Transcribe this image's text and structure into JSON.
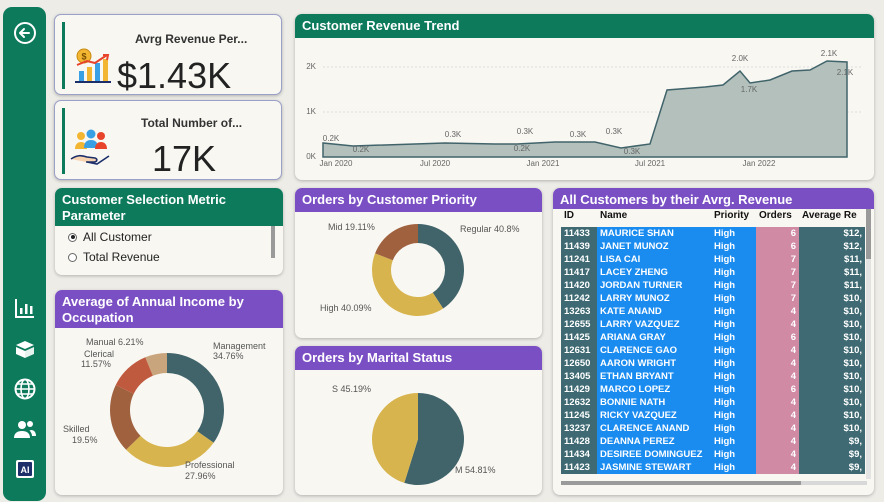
{
  "colors": {
    "sidebar": "#0d7a5c",
    "header_green": "#0d7a5c",
    "header_purple": "#7b4fc4",
    "donut_teal": "#41646b",
    "donut_gold": "#d7b44d",
    "donut_brown": "#a0613e",
    "donut_red": "#c05a3f",
    "donut_tan": "#c9a57e",
    "table_blue": "#1a8cf0",
    "table_dark": "#3f6a73",
    "table_pink": "#d08aa4"
  },
  "sidebar": {
    "icons": [
      "back-arrow-icon",
      "bar-chart-icon",
      "boxes-icon",
      "globe-icon",
      "users-icon",
      "ai-icon"
    ]
  },
  "kpi_revenue": {
    "title": "Avrg Revenue Per...",
    "value": "$1.43K"
  },
  "kpi_customers": {
    "title": "Total Number of...",
    "value": "17K"
  },
  "parameter": {
    "title": "Customer Selection Metric Parameter",
    "options": [
      {
        "label": "All Customer",
        "selected": true
      },
      {
        "label": "Total Revenue",
        "selected": false
      }
    ]
  },
  "trend": {
    "title": "Customer Revenue Trend",
    "y_ticks": [
      "2K",
      "1K",
      "0K"
    ],
    "x_ticks": [
      "Jan 2020",
      "Jul 2020",
      "Jan 2021",
      "Jul 2021",
      "Jan 2022"
    ],
    "labels": [
      "0.2K",
      "0.2K",
      "0.3K",
      "0.3K",
      "0.2K",
      "0.3K",
      "0.3K",
      "0.3K",
      "2.0K",
      "1.7K",
      "2.1K",
      "2.1K"
    ]
  },
  "priority": {
    "title": "Orders by Customer Priority",
    "labels": [
      "Mid 19.11%",
      "Regular 40.8%",
      "High 40.09%"
    ]
  },
  "occupation": {
    "title": "Average of Annual Income by Occupation",
    "labels": {
      "manual": "Manual 6.21%",
      "clerical_1": "Clerical",
      "clerical_2": "11.57%",
      "management_1": "Management",
      "management_2": "34.76%",
      "skilled_1": "Skilled",
      "skilled_2": "19.5%",
      "professional_1": "Professional",
      "professional_2": "27.96%"
    }
  },
  "marital": {
    "title": "Orders by Marital Status",
    "labels": [
      "S 45.19%",
      "M 54.81%"
    ]
  },
  "customers_table": {
    "title": "All Customers by their Avrg. Revenue",
    "columns": [
      "ID",
      "Name",
      "Priority",
      "Orders",
      "Average Re"
    ],
    "rows": [
      {
        "id": "11433",
        "name": "MAURICE SHAN",
        "priority": "High",
        "orders": "6",
        "avg": "$12,"
      },
      {
        "id": "11439",
        "name": "JANET MUNOZ",
        "priority": "High",
        "orders": "6",
        "avg": "$12,"
      },
      {
        "id": "11241",
        "name": "LISA CAI",
        "priority": "High",
        "orders": "7",
        "avg": "$11,"
      },
      {
        "id": "11417",
        "name": "LACEY ZHENG",
        "priority": "High",
        "orders": "7",
        "avg": "$11,"
      },
      {
        "id": "11420",
        "name": "JORDAN TURNER",
        "priority": "High",
        "orders": "7",
        "avg": "$11,"
      },
      {
        "id": "11242",
        "name": "LARRY MUNOZ",
        "priority": "High",
        "orders": "7",
        "avg": "$10,"
      },
      {
        "id": "13263",
        "name": "KATE ANAND",
        "priority": "High",
        "orders": "4",
        "avg": "$10,"
      },
      {
        "id": "12655",
        "name": "LARRY VAZQUEZ",
        "priority": "High",
        "orders": "4",
        "avg": "$10,"
      },
      {
        "id": "11425",
        "name": "ARIANA GRAY",
        "priority": "High",
        "orders": "6",
        "avg": "$10,"
      },
      {
        "id": "12631",
        "name": "CLARENCE GAO",
        "priority": "High",
        "orders": "4",
        "avg": "$10,"
      },
      {
        "id": "12650",
        "name": "AARON WRIGHT",
        "priority": "High",
        "orders": "4",
        "avg": "$10,"
      },
      {
        "id": "13405",
        "name": "ETHAN BRYANT",
        "priority": "High",
        "orders": "4",
        "avg": "$10,"
      },
      {
        "id": "11429",
        "name": "MARCO LOPEZ",
        "priority": "High",
        "orders": "6",
        "avg": "$10,"
      },
      {
        "id": "12632",
        "name": "BONNIE NATH",
        "priority": "High",
        "orders": "4",
        "avg": "$10,"
      },
      {
        "id": "11245",
        "name": "RICKY VAZQUEZ",
        "priority": "High",
        "orders": "4",
        "avg": "$10,"
      },
      {
        "id": "13237",
        "name": "CLARENCE ANAND",
        "priority": "High",
        "orders": "4",
        "avg": "$10,"
      },
      {
        "id": "11428",
        "name": "DEANNA PEREZ",
        "priority": "High",
        "orders": "4",
        "avg": "$9,"
      },
      {
        "id": "11434",
        "name": "DESIREE DOMINGUEZ",
        "priority": "High",
        "orders": "4",
        "avg": "$9,"
      },
      {
        "id": "11423",
        "name": "JASMINE STEWART",
        "priority": "High",
        "orders": "4",
        "avg": "$9,"
      }
    ]
  }
}
